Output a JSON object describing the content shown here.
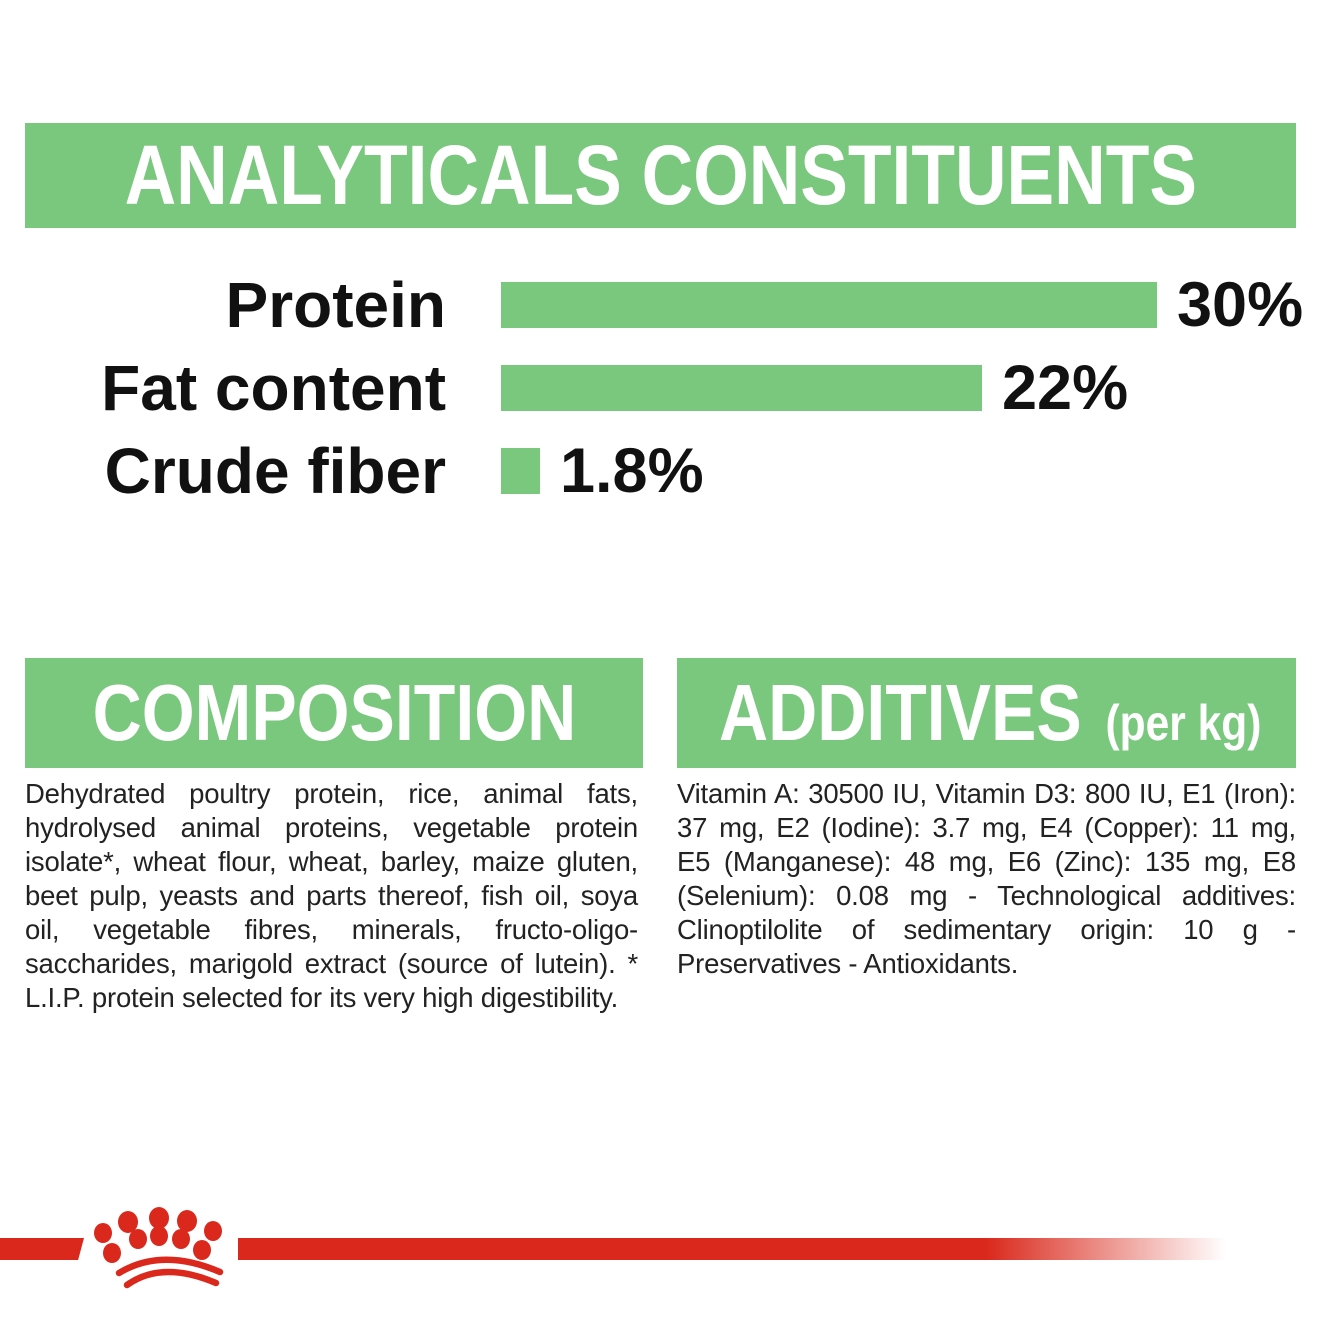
{
  "colors": {
    "green": "#7AC77E",
    "red": "#DA291C",
    "text": "#222222",
    "header_text": "#ffffff"
  },
  "analyticals": {
    "title": "ANALYTICALS CONSTITUENTS"
  },
  "chart_data": {
    "type": "bar",
    "orientation": "horizontal",
    "title": "ANALYTICALS CONSTITUENTS",
    "categories": [
      "Protein",
      "Fat content",
      "Crude fiber"
    ],
    "values": [
      30,
      22,
      1.8
    ],
    "value_labels": [
      "30%",
      "22%",
      "1.8%"
    ],
    "unit": "%",
    "xlim": [
      0,
      30
    ],
    "bar_color": "#7AC77E",
    "grid": false,
    "legend": false,
    "value_label_position": "right-of-bar"
  },
  "composition": {
    "title": "COMPOSITION",
    "body": "Dehydrated poultry protein, rice, animal fats, hydrolysed animal proteins, vegetable protein isolate*, wheat flour, wheat, barley, maize gluten, beet pulp, yeasts and parts thereof, fish oil, soya oil, vegetable fibres, minerals, fructo-oligo-saccharides, marigold extract (source of lutein). * L.I.P. protein selected for its very high digestibility."
  },
  "additives": {
    "title": "ADDITIVES",
    "unit": "(per kg)",
    "body": "Vitamin A: 30500 IU, Vitamin D3: 800 IU, E1 (Iron): 37 mg, E2 (Iodine): 3.7 mg, E4 (Copper): 11 mg, E5 (Manganese): 48 mg, E6 (Zinc): 135 mg, E8 (Selenium): 0.08 mg - Technological additives: Clinoptilolite of sedimentary origin: 10 g - Preservatives - Antioxidants."
  },
  "footer": {
    "brand_logo": "royal-canin-crown"
  }
}
